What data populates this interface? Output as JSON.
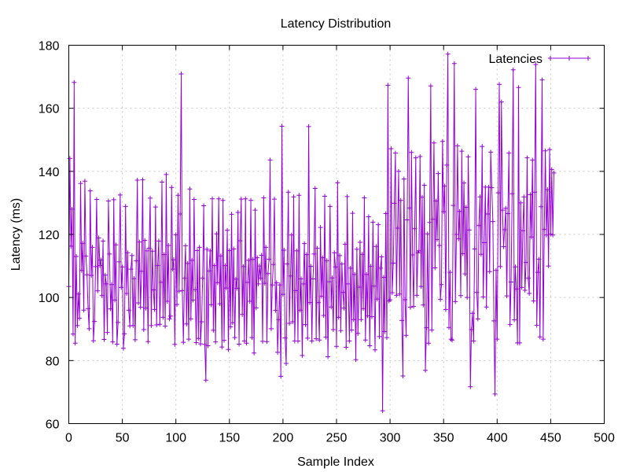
{
  "chart_data": {
    "type": "line",
    "title": "Latency Distribution",
    "xlabel": "Sample Index",
    "ylabel": "Latency (ms)",
    "xlim": [
      0,
      500
    ],
    "ylim": [
      60,
      180
    ],
    "x_ticks": [
      0,
      50,
      100,
      150,
      200,
      250,
      300,
      350,
      400,
      450,
      500
    ],
    "y_ticks": [
      60,
      80,
      100,
      120,
      140,
      160,
      180
    ],
    "grid": true,
    "legend_position": "top-right",
    "marker": "plus",
    "series": [
      {
        "name": "Latencies",
        "color": "#9400d3",
        "x_start": 0,
        "x_step": 1,
        "values": [
          103.5,
          144.1,
          116.3,
          128.0,
          88.4,
          168.2,
          85.5,
          113.0,
          91.1,
          101.1,
          93.4,
          136.2,
          108.6,
          117.2,
          96.0,
          136.9,
          113.1,
          107.2,
          96.5,
          90.1,
          133.8,
          107.0,
          115.9,
          86.3,
          92.4,
          109.8,
          131.1,
          102.1,
          118.9,
          110.1,
          111.9,
          100.6,
          117.9,
          86.7,
          107.1,
          104.3,
          88.9,
          130.6,
          113.8,
          96.4,
          104.1,
          85.9,
          131.0,
          99.2,
          116.7,
          85.2,
          92.1,
          111.3,
          132.5,
          103.2,
          109.7,
          83.9,
          88.5,
          128.9,
          101.3,
          114.2,
          96.0,
          91.0,
          109.0,
          113.3,
          91.1,
          106.0,
          86.6,
          111.6,
          137.2,
          98.3,
          117.6,
          96.9,
          108.3,
          137.3,
          89.8,
          118.1,
          96.6,
          114.8,
          86.0,
          115.6,
          131.5,
          91.1,
          114.7,
          102.4,
          96.2,
          128.7,
          91.3,
          110.1,
          117.9,
          91.5,
          104.8,
          136.6,
          93.7,
          113.6,
          90.9,
          139.0,
          98.8,
          116.5,
          93.2,
          94.1,
          134.9,
          109.0,
          112.0,
          85.1,
          119.9,
          97.8,
          132.4,
          102.0,
          126.5,
          170.9,
          102.2,
          85.8,
          106.1,
          116.4,
          91.6,
          110.8,
          86.8,
          134.4,
          93.2,
          111.8,
          99.2,
          131.1,
          102.5,
          85.7,
          114.9,
          87.0,
          115.9,
          85.3,
          92.3,
          106.1,
          129.1,
          85.1,
          73.8,
          115.3,
          84.7,
          108.4,
          114.8,
          97.7,
          131.3,
          89.6,
          110.1,
          85.9,
          120.2,
          104.7,
          131.3,
          98.0,
          113.2,
          84.3,
          130.8,
          86.4,
          110.1,
          103.0,
          121.3,
          83.5,
          114.9,
          90.7,
          126.4,
          92.0,
          115.4,
          87.3,
          105.8,
          102.9,
          127.0,
          85.2,
          118.0,
          131.2,
          94.6,
          109.8,
          86.2,
          131.3,
          85.5,
          104.8,
          111.8,
          98.8,
          130.8,
          87.3,
          112.1,
          82.4,
          127.7,
          96.7,
          112.6,
          104.3,
          110.0,
          106.1,
          113.4,
          86.1,
          131.6,
          104.5,
          115.9,
          86.0,
          107.6,
          112.1,
          143.6,
          90.1,
          104.0,
          110.5,
          131.2,
          95.9,
          104.7,
          82.6,
          93.0,
          104.0,
          75.0,
          154.3,
          101.0,
          115.0,
          87.2,
          79.1,
          110.6,
          133.4,
          91.8,
          106.8,
          119.8,
          92.3,
          131.9,
          86.2,
          102.2,
          114.8,
          86.2,
          132.4,
          96.0,
          105.9,
          81.6,
          104.3,
          117.1,
          91.4,
          113.6,
          87.1,
          154.2,
          98.4,
          109.9,
          86.2,
          105.9,
          113.8,
          134.6,
          86.9,
          115.6,
          98.4,
          86.5,
          122.2,
          100.4,
          112.6,
          94.3,
          132.1,
          87.4,
          111.7,
          81.2,
          105.0,
          128.9,
          97.0,
          106.2,
          89.8,
          114.2,
          109.7,
          84.5,
          136.4,
          93.7,
          113.3,
          89.5,
          110.6,
          101.6,
          96.6,
          116.9,
          84.2,
          132.0,
          104.3,
          86.2,
          109.3,
          89.7,
          126.7,
          93.0,
          107.3,
          80.3,
          115.3,
          88.6,
          103.3,
          117.5,
          93.0,
          113.7,
          96.5,
          131.6,
          86.5,
          107.3,
          94.2,
          125.6,
          84.7,
          109.9,
          93.9,
          123.9,
          103.6,
          83.4,
          116.2,
          99.5,
          123.1,
          87.6,
          109.3,
          112.9,
          64.1,
          106.4,
          89.2,
          126.6,
          87.3,
          167.3,
          98.9,
          99.3,
          147.2,
          101.5,
          110.9,
          129.9,
          145.8,
          100.7,
          122.0,
          140.0,
          101.1,
          130.8,
          92.7,
          75.1,
          137.6,
          99.3,
          88.0,
          124.6,
          169.6,
          128.4,
          96.9,
          146.0,
          113.5,
          97.2,
          121.8,
          144.3,
          100.7,
          114.2,
          114.8,
          144.7,
          103.5,
          131.8,
          97.6,
          135.6,
          76.9,
          90.4,
          120.2,
          85.5,
          123.8,
          167.1,
          89.7,
          124.8,
          149.0,
          109.4,
          130.6,
          118.4,
          139.3,
          116.5,
          99.4,
          104.1,
          149.5,
          127.2,
          135.3,
          96.2,
          142.0,
          177.2,
          90.5,
          108.0,
          86.8,
          86.5,
          129.2,
          174.2,
          98.7,
          120.0,
          148.1,
          118.6,
          127.3,
          100.6,
          146.4,
          113.9,
          136.3,
          107.5,
          128.6,
          100.0,
          144.6,
          121.4,
          71.7,
          89.8,
          95.0,
          86.2,
          115.4,
          166.0,
          101.6,
          93.2,
          122.8,
          131.9,
          113.7,
          147.9,
          100.2,
          117.4,
          135.0,
          97.0,
          126.5,
          135.0,
          108.2,
          146.1,
          134.8,
          124.1,
          92.6,
          69.4,
          108.6,
          86.8,
          133.2,
          167.6,
          109.8,
          162.0,
          127.7,
          116.1,
          121.5,
          128.3,
          100.5,
          126.6,
          145.8,
          91.4,
          104.9,
          132.9,
          172.2,
          92.9,
          109.7,
          102.7,
          85.6,
          166.6,
          85.6,
          130.0,
          103.2,
          121.2,
          131.9,
          102.3,
          111.1,
          144.3,
          106.1,
          101.3,
          132.6,
          119.2,
          143.6,
          98.9,
          133.4,
          173.9,
          91.2,
          108.0,
          112.1,
          87.5,
          128.8,
          169.0,
          86.8,
          121.6,
          146.5,
          119.8,
          134.2,
          110.0,
          146.9,
          120.1,
          140.6,
          119.8,
          139.5
        ]
      }
    ]
  }
}
